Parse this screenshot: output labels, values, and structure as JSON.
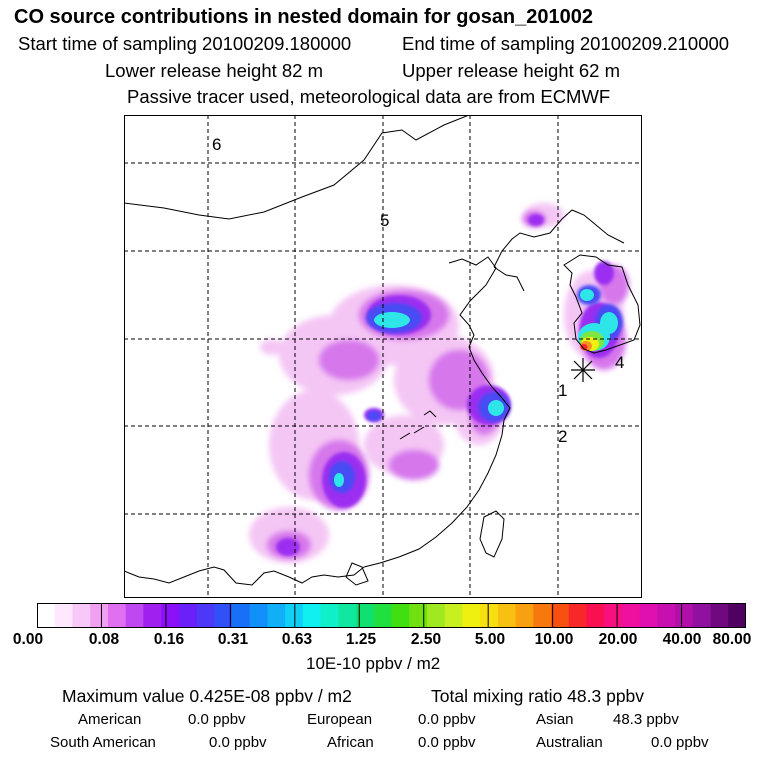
{
  "header": {
    "title": "CO  source contributions in nested domain for gosan_201002",
    "start_label": "Start time of sampling 20100209.180000",
    "end_label": "End time of sampling 20100209.210000",
    "lower_label": "Lower release height   82 m",
    "upper_label": "Upper release height   62 m",
    "note": "Passive tracer used, meteorological data are from ECMWF"
  },
  "map": {
    "region_labels": [
      "6",
      "5",
      "4",
      "1",
      "2"
    ]
  },
  "colorbar": {
    "ticks": [
      "0.00",
      "0.08",
      "0.16",
      "0.31",
      "0.63",
      "1.25",
      "2.50",
      "5.00",
      "10.00",
      "20.00",
      "40.00",
      "80.00"
    ],
    "units": "10E-10 ppbv / m2",
    "colors": [
      "#ffffff",
      "#fde8fd",
      "#f8c8f8",
      "#f0a0f0",
      "#e070f0",
      "#c048f0",
      "#a020f0",
      "#8c10f8",
      "#6a20f8",
      "#4d38f8",
      "#3050f8",
      "#1870f8",
      "#1090f8",
      "#10b0f8",
      "#10d0f8",
      "#10f0f0",
      "#10f0c8",
      "#10e8a0",
      "#10e070",
      "#20e040",
      "#40e010",
      "#70e010",
      "#a0e820",
      "#c8f020",
      "#f0f010",
      "#f8e010",
      "#f8c010",
      "#f8a010",
      "#f87810",
      "#f85010",
      "#f82828",
      "#f81050",
      "#f81080",
      "#f010a0",
      "#e010b0",
      "#c810b0",
      "#b010a8",
      "#9010a0",
      "#700880",
      "#500060"
    ]
  },
  "stats": {
    "maximum": "Maximum value  0.425E-08 ppbv / m2",
    "total": "Total mixing ratio       48.3 ppbv",
    "regions": [
      {
        "name": "American",
        "value": "0.0 ppbv"
      },
      {
        "name": "European",
        "value": "0.0 ppbv"
      },
      {
        "name": "Asian",
        "value": "48.3 ppbv"
      },
      {
        "name": "South American",
        "value": "0.0 ppbv"
      },
      {
        "name": "African",
        "value": "0.0 ppbv"
      },
      {
        "name": "Australian",
        "value": "0.0 ppbv"
      }
    ]
  }
}
